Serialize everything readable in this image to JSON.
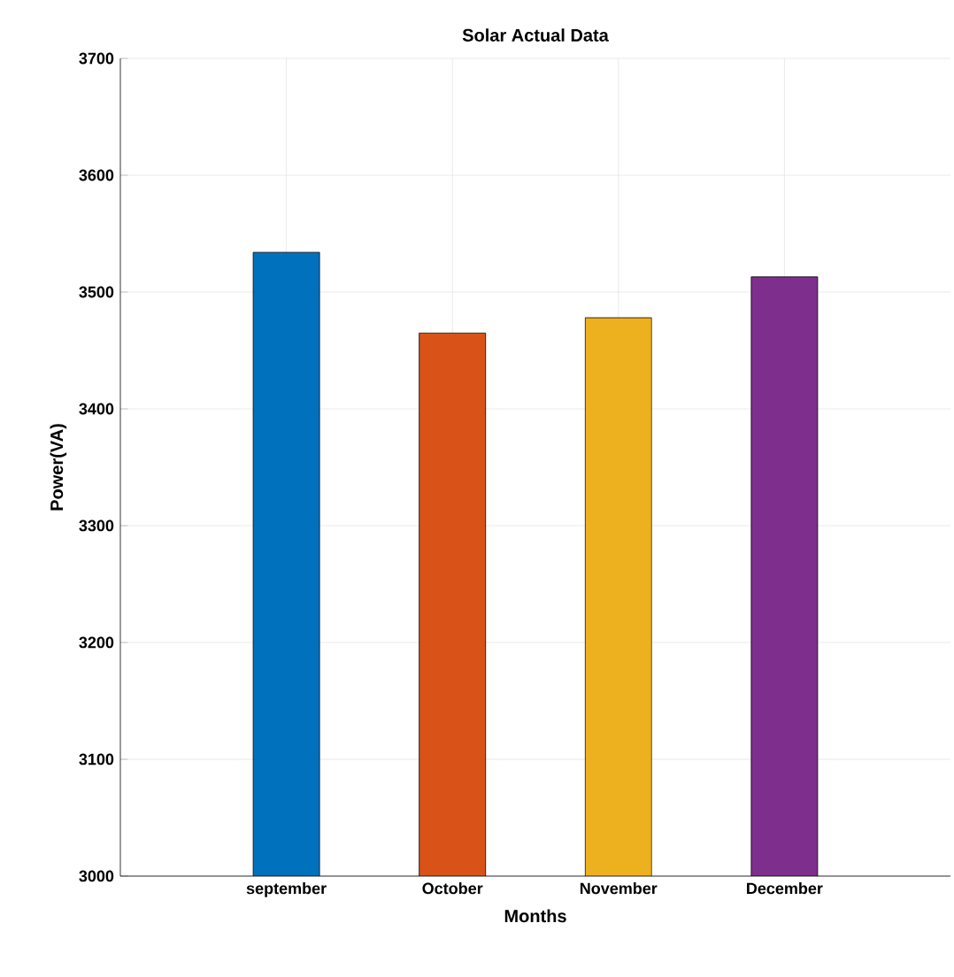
{
  "chart_data": {
    "type": "bar",
    "title": "Solar Actual Data",
    "xlabel": "Months",
    "ylabel": "Power(VA)",
    "categories": [
      "september",
      "October",
      "November",
      "December"
    ],
    "values": [
      3534,
      3465,
      3478,
      3513
    ],
    "colors": [
      "#0072bd",
      "#d95319",
      "#edb120",
      "#7e2f8e"
    ],
    "ylim": [
      3000,
      3700
    ],
    "yticks": [
      3000,
      3100,
      3200,
      3300,
      3400,
      3500,
      3600,
      3700
    ],
    "grid": true
  }
}
